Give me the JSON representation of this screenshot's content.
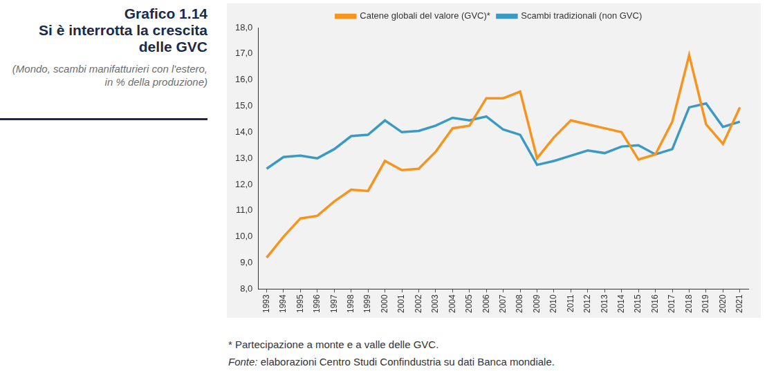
{
  "chart_data": {
    "type": "line",
    "title": "Grafico 1.14",
    "subtitle": "Si è interrotta la crescita delle GVC",
    "description": "(Mondo, scambi manifatturieri con l'estero, in % della produzione)",
    "footnote": "* Partecipazione a monte e a valle delle GVC.",
    "source_label": "Fonte:",
    "source_text": "elaborazioni Centro Studi Confindustria su dati Banca mondiale.",
    "categories": [
      "1993",
      "1994",
      "1995",
      "1996",
      "1997",
      "1998",
      "1999",
      "2000",
      "2001",
      "2002",
      "2003",
      "2004",
      "2005",
      "2006",
      "2007",
      "2008",
      "2009",
      "2010",
      "2011",
      "2012",
      "2013",
      "2014",
      "2015",
      "2016",
      "2017",
      "2018",
      "2019",
      "2020",
      "2021"
    ],
    "series": [
      {
        "name": "Catene globali del valore (GVC)*",
        "color": "#f7941d",
        "values": [
          9.2,
          10.0,
          10.7,
          10.8,
          11.35,
          11.8,
          11.75,
          12.9,
          12.55,
          12.6,
          13.25,
          14.15,
          14.25,
          15.3,
          15.3,
          15.55,
          13.0,
          13.8,
          14.45,
          14.3,
          14.15,
          14.0,
          12.95,
          13.15,
          14.4,
          16.95,
          14.3,
          13.55,
          14.95
        ]
      },
      {
        "name": "Scambi tradizionali (non GVC)",
        "color": "#3b9ac4",
        "values": [
          12.6,
          13.05,
          13.1,
          13.0,
          13.35,
          13.85,
          13.9,
          14.45,
          14.0,
          14.05,
          14.25,
          14.55,
          14.45,
          14.6,
          14.1,
          13.9,
          12.75,
          12.9,
          13.1,
          13.3,
          13.2,
          13.45,
          13.5,
          13.15,
          13.35,
          14.95,
          15.1,
          14.2,
          14.4
        ]
      }
    ],
    "ylim": [
      8,
      18
    ],
    "yticks": [
      {
        "value": 8,
        "label": "8,0"
      },
      {
        "value": 9,
        "label": "9,0"
      },
      {
        "value": 10,
        "label": "10,0"
      },
      {
        "value": 11,
        "label": "11,0"
      },
      {
        "value": 12,
        "label": "12,0"
      },
      {
        "value": 13,
        "label": "13,0"
      },
      {
        "value": 14,
        "label": "14,0"
      },
      {
        "value": 15,
        "label": "15,0"
      },
      {
        "value": 16,
        "label": "16,0"
      },
      {
        "value": 17,
        "label": "17,0"
      },
      {
        "value": 18,
        "label": "18,0"
      }
    ],
    "grid": false,
    "legend": "top"
  }
}
